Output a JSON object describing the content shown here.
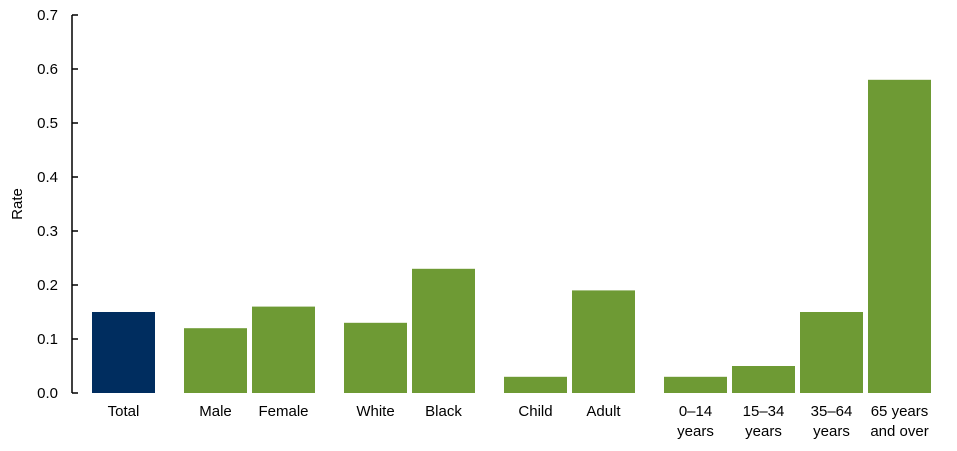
{
  "chart_data": {
    "type": "bar",
    "ylabel": "Rate",
    "ylim": [
      0,
      0.7
    ],
    "yticks": [
      "0.0",
      "0.1",
      "0.2",
      "0.3",
      "0.4",
      "0.5",
      "0.6",
      "0.7"
    ],
    "categories": [
      {
        "label": [
          "Total"
        ],
        "value": 0.15,
        "color": "#002d5f",
        "group": 0
      },
      {
        "label": [
          "Male"
        ],
        "value": 0.12,
        "color": "#6e9a34",
        "group": 1
      },
      {
        "label": [
          "Female"
        ],
        "value": 0.16,
        "color": "#6e9a34",
        "group": 1
      },
      {
        "label": [
          "White"
        ],
        "value": 0.13,
        "color": "#6e9a34",
        "group": 2
      },
      {
        "label": [
          "Black"
        ],
        "value": 0.23,
        "color": "#6e9a34",
        "group": 2
      },
      {
        "label": [
          "Child"
        ],
        "value": 0.03,
        "color": "#6e9a34",
        "group": 3
      },
      {
        "label": [
          "Adult"
        ],
        "value": 0.19,
        "color": "#6e9a34",
        "group": 3
      },
      {
        "label": [
          "0–14",
          "years"
        ],
        "value": 0.03,
        "color": "#6e9a34",
        "group": 4
      },
      {
        "label": [
          "15–34",
          "years"
        ],
        "value": 0.05,
        "color": "#6e9a34",
        "group": 4
      },
      {
        "label": [
          "35–64",
          "years"
        ],
        "value": 0.15,
        "color": "#6e9a34",
        "group": 4
      },
      {
        "label": [
          "65 years",
          "and over"
        ],
        "value": 0.58,
        "color": "#6e9a34",
        "group": 4
      }
    ]
  }
}
